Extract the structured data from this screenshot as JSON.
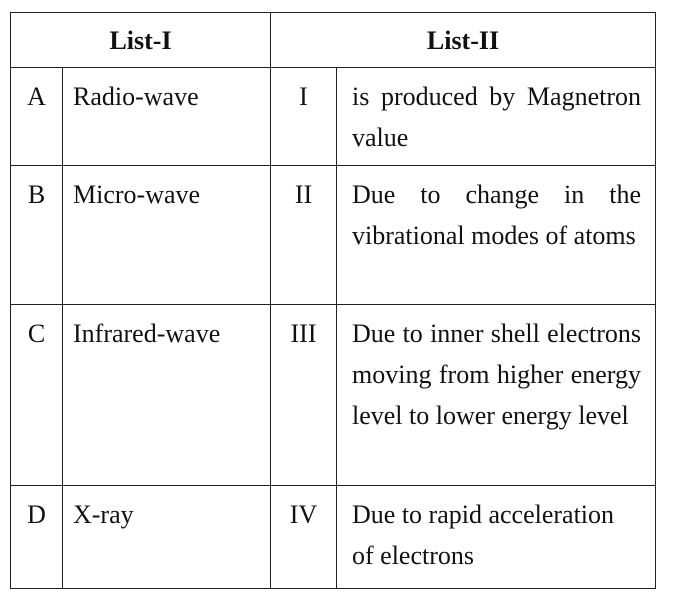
{
  "table": {
    "header": [
      "List-I",
      "List-II"
    ],
    "rows": [
      [
        "A",
        "Radio-wave",
        "I",
        "is produced by Magnetron value"
      ],
      [
        "B",
        "Micro-wave",
        "II",
        "Due to change in the vibrational modes of atoms"
      ],
      [
        "C",
        "Infrared-wave",
        "III",
        "Due to inner shell electrons moving from higher energy level to lower energy level"
      ],
      [
        "D",
        "X-ray",
        "IV",
        "Due to rapid acceleration of electrons"
      ]
    ]
  }
}
